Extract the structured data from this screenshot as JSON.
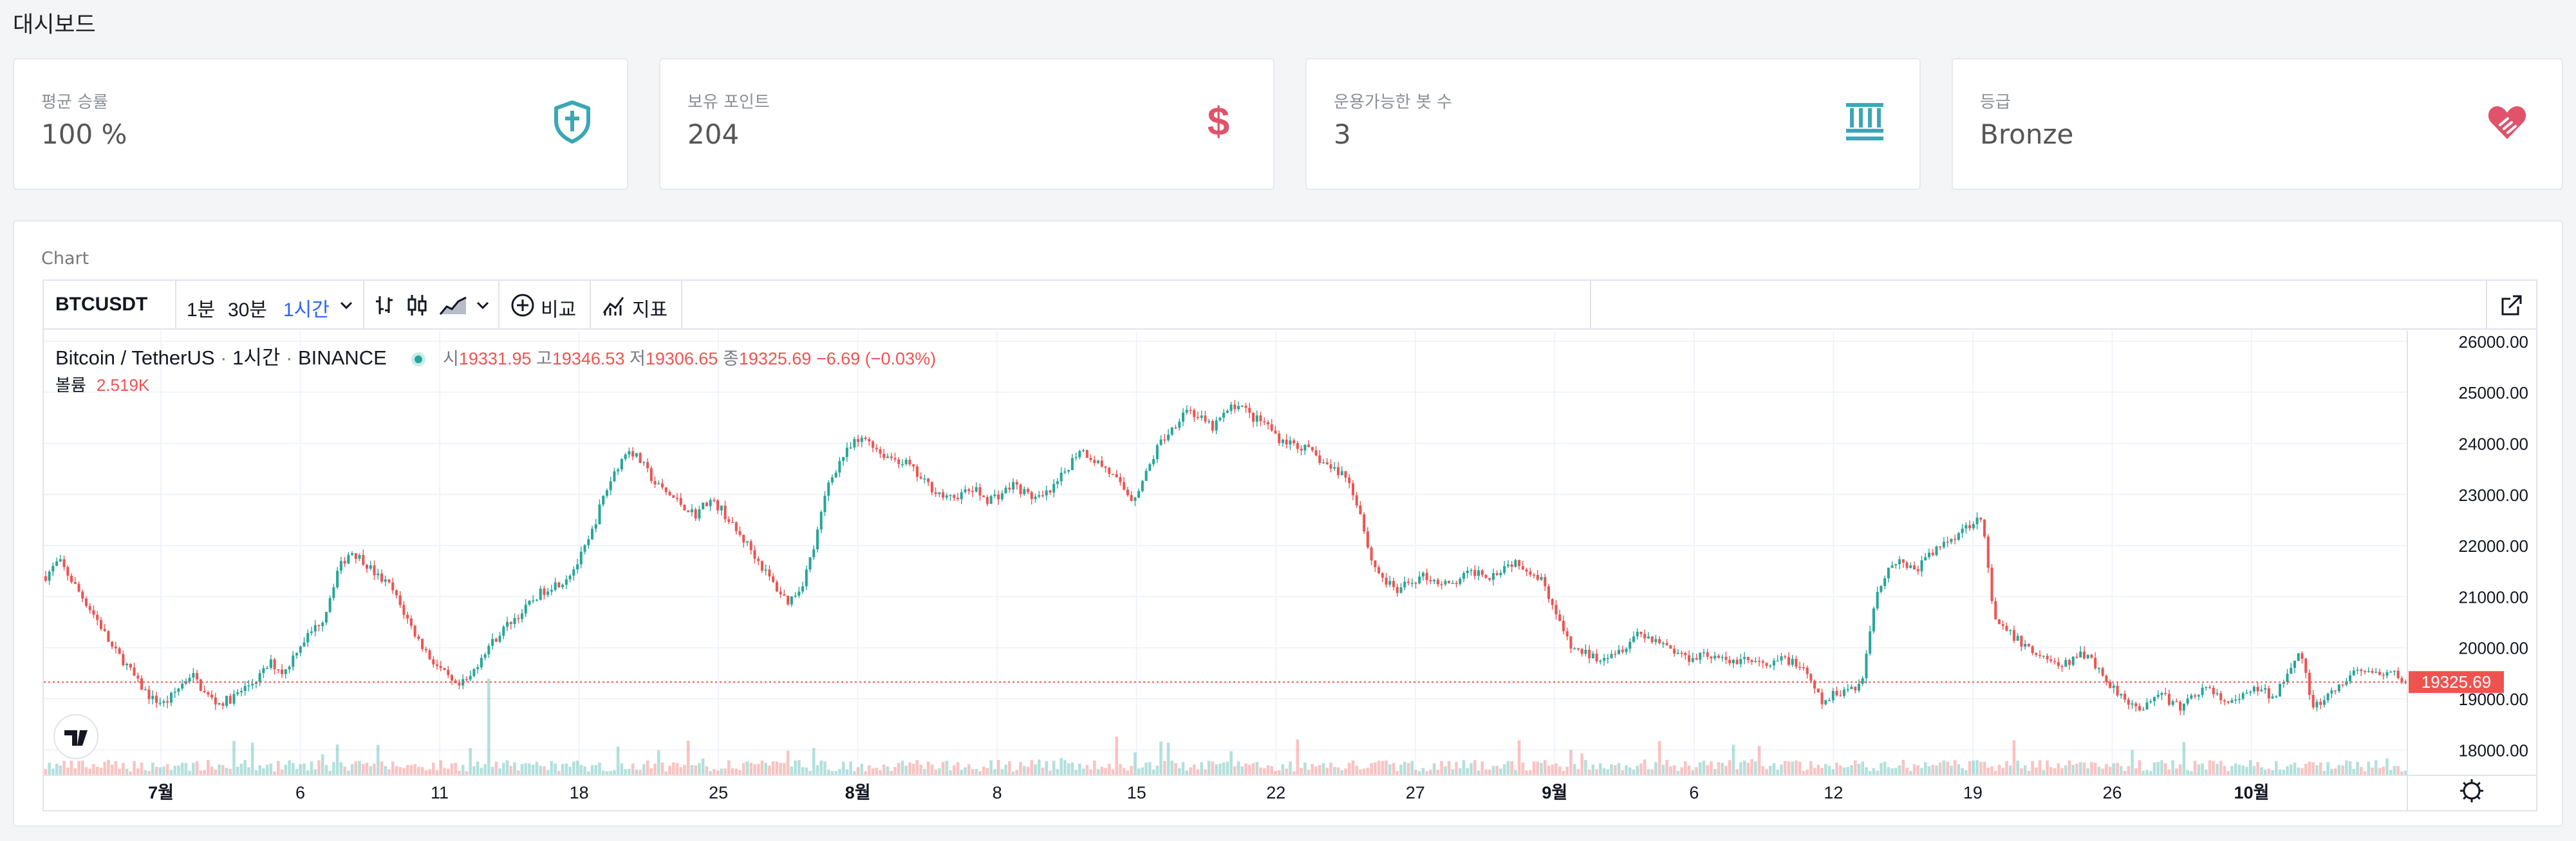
{
  "page": {
    "title": "대시보드"
  },
  "stats": [
    {
      "label": "평균 승률",
      "value": "100 %",
      "icon": "shield-cross-icon",
      "color": "#3aa7b5"
    },
    {
      "label": "보유 포인트",
      "value": "204",
      "icon": "dollar-icon",
      "color": "#e0536a"
    },
    {
      "label": "운용가능한 봇 수",
      "value": "3",
      "icon": "bots-icon",
      "color": "#3aa7b5"
    },
    {
      "label": "등급",
      "value": "Bronze",
      "icon": "heart-hand-icon",
      "color": "#e0536a"
    }
  ],
  "chart_section": {
    "label": "Chart"
  },
  "toolbar": {
    "symbol": "BTCUSDT",
    "intervals": [
      "1분",
      "30분",
      "1시간"
    ],
    "active_interval": "1시간",
    "compare_label": "비교",
    "indicators_label": "지표"
  },
  "legend": {
    "title": "Bitcoin / TetherUS",
    "interval": "1시간",
    "exchange": "BINANCE",
    "open_label": "시",
    "open": "19331.95",
    "high_label": "고",
    "high": "19346.53",
    "low_label": "저",
    "low": "19306.65",
    "close_label": "종",
    "close": "19325.69",
    "change": "−6.69 (−0.03%)",
    "volume_label": "볼륨",
    "volume": "2.519K"
  },
  "chart_data": {
    "type": "line",
    "subtype": "candlestick",
    "title": "",
    "xlabel": "",
    "ylabel": "",
    "ylim": [
      17500,
      26200
    ],
    "yticks": [
      "26000.00",
      "25000.00",
      "24000.00",
      "23000.00",
      "22000.00",
      "21000.00",
      "20000.00",
      "19000.00",
      "18000.00"
    ],
    "ytick_values": [
      26000,
      25000,
      24000,
      23000,
      22000,
      21000,
      20000,
      19000,
      18000
    ],
    "xticks": [
      "7월",
      "6",
      "11",
      "18",
      "25",
      "8월",
      "8",
      "15",
      "22",
      "27",
      "9월",
      "6",
      "12",
      "19",
      "26",
      "10월"
    ],
    "xtick_bold": [
      true,
      false,
      false,
      false,
      false,
      true,
      false,
      false,
      false,
      false,
      true,
      false,
      false,
      false,
      false,
      true
    ],
    "last_price": "19325.69",
    "last_value": 19325.69,
    "series": [
      {
        "values": [
          21400,
          21700,
          21300,
          20900,
          20500,
          20000,
          19700,
          19300,
          19000,
          18900,
          19200,
          19500,
          19100,
          18900,
          19000,
          19200,
          19400,
          19700,
          19500,
          20000,
          20300,
          20600,
          21500,
          21900,
          21700,
          21400,
          21200,
          20700,
          20200,
          19800,
          19500,
          19200,
          19400,
          19900,
          20200,
          20500,
          20700,
          21000,
          21200,
          21300,
          21600,
          22100,
          22900,
          23500,
          23900,
          23600,
          23200,
          23000,
          22800,
          22600,
          22900,
          22700,
          22300,
          22000,
          21600,
          21200,
          20900,
          21200,
          22000,
          23200,
          23700,
          24000,
          24100,
          23800,
          23700,
          23600,
          23300,
          23100,
          22900,
          23000,
          23100,
          22900,
          23000,
          23200,
          23000,
          22900,
          23100,
          23500,
          23900,
          23700,
          23500,
          23200,
          22900,
          23400,
          24000,
          24300,
          24700,
          24500,
          24300,
          24600,
          24800,
          24500,
          24400,
          24100,
          24000,
          23900,
          23700,
          23500,
          23400,
          22800,
          21700,
          21300,
          21100,
          21300,
          21400,
          21300,
          21200,
          21400,
          21500,
          21400,
          21600,
          21700,
          21500,
          21300,
          20600,
          20000,
          19900,
          19800,
          19900,
          20000,
          20300,
          20200,
          20100,
          19900,
          19800,
          19900,
          19800,
          19700,
          19800,
          19700,
          19600,
          19800,
          19700,
          19400,
          18900,
          19100,
          19200,
          19300,
          21000,
          21600,
          21700,
          21500,
          21800,
          22000,
          22200,
          22400,
          22600,
          20500,
          20300,
          20100,
          19900,
          19800,
          19600,
          19800,
          19900,
          19500,
          19200,
          19000,
          18700,
          19100,
          19000,
          18800,
          19100,
          19200,
          19000,
          18900,
          19100,
          19200,
          19000,
          19500,
          20000,
          18800,
          19000,
          19200,
          19500,
          19600,
          19400,
          19500,
          19325
        ]
      }
    ],
    "grid": true,
    "legend_position": "top-left"
  },
  "colors": {
    "up": "#26a69a",
    "down": "#ef5350",
    "accent": "#2962ff"
  }
}
